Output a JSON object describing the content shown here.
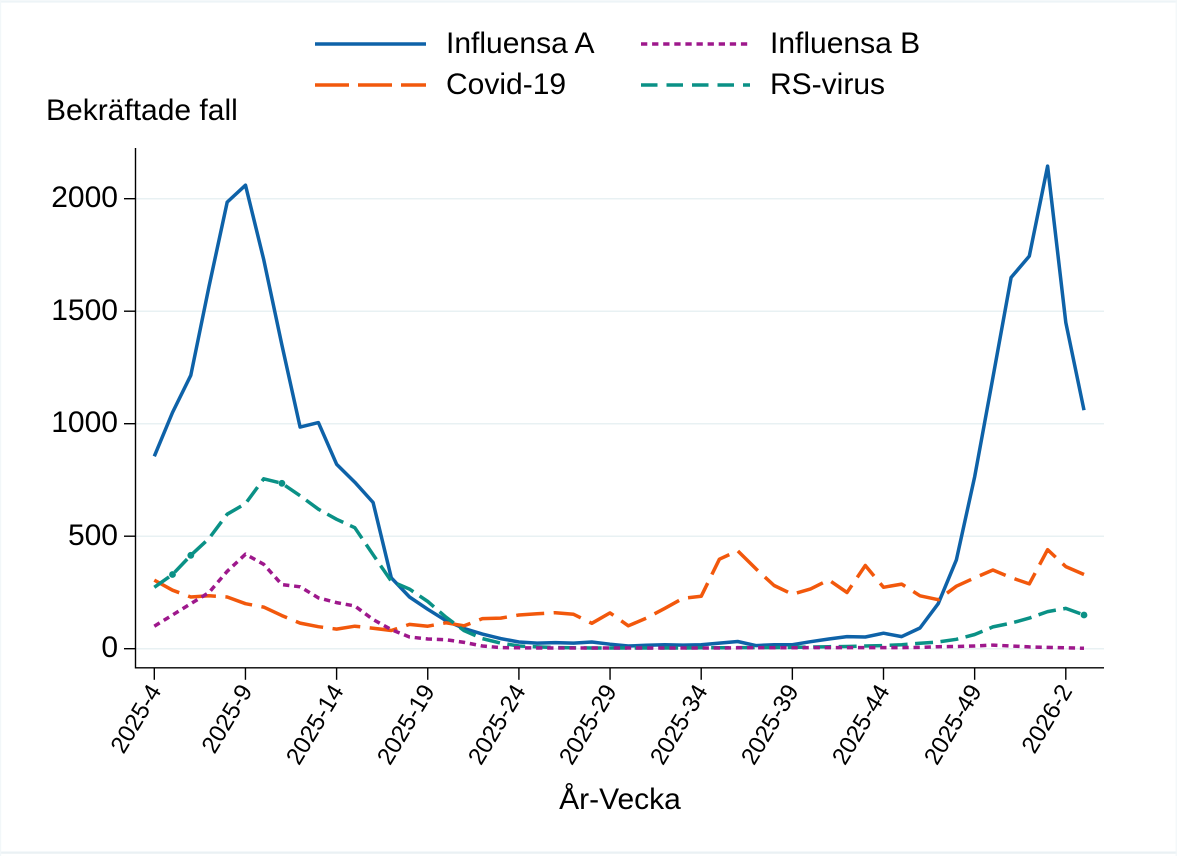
{
  "chart_data": {
    "type": "line",
    "title": "Bekräftade fall",
    "xlabel": "År-Vecka",
    "ylabel": "",
    "grid": true,
    "legend_position": "top-center",
    "yticks": [
      0,
      500,
      1000,
      1500,
      2000
    ],
    "ylim": [
      0,
      2225
    ],
    "xtick_labels": [
      "2025-4",
      "2025-9",
      "2025-14",
      "2025-19",
      "2025-24",
      "2025-29",
      "2025-34",
      "2025-39",
      "2025-44",
      "2025-49",
      "2026-2"
    ],
    "xtick_week_index": [
      0,
      5,
      10,
      15,
      20,
      25,
      30,
      35,
      40,
      45,
      50
    ],
    "weeks": [
      "2025-4",
      "2025-5",
      "2025-6",
      "2025-7",
      "2025-8",
      "2025-9",
      "2025-10",
      "2025-11",
      "2025-12",
      "2025-13",
      "2025-14",
      "2025-15",
      "2025-16",
      "2025-17",
      "2025-18",
      "2025-19",
      "2025-20",
      "2025-21",
      "2025-22",
      "2025-23",
      "2025-24",
      "2025-25",
      "2025-26",
      "2025-27",
      "2025-28",
      "2025-29",
      "2025-30",
      "2025-31",
      "2025-32",
      "2025-33",
      "2025-34",
      "2025-35",
      "2025-36",
      "2025-37",
      "2025-38",
      "2025-39",
      "2025-40",
      "2025-41",
      "2025-42",
      "2025-43",
      "2025-44",
      "2025-45",
      "2025-46",
      "2025-47",
      "2025-48",
      "2025-49",
      "2025-50",
      "2025-51",
      "2025-52",
      "2026-1",
      "2026-2",
      "2026-3"
    ],
    "series": [
      {
        "name": "Influensa A",
        "color": "#0e62a8",
        "pattern": "solid",
        "z": 0,
        "markers": false,
        "values": [
          855,
          1050,
          1215,
          1610,
          1985,
          2060,
          1730,
          1350,
          985,
          1005,
          820,
          740,
          650,
          315,
          230,
          175,
          125,
          90,
          65,
          45,
          30,
          25,
          27,
          25,
          30,
          20,
          12,
          15,
          18,
          16,
          18,
          25,
          32,
          14,
          18,
          18,
          31,
          43,
          54,
          52,
          69,
          54,
          92,
          200,
          395,
          765,
          1205,
          1650,
          1745,
          2145,
          1450,
          1060
        ]
      },
      {
        "name": "Covid-19",
        "color": "#f2580c",
        "pattern": "longdash",
        "z": 1,
        "markers": false,
        "values": [
          305,
          260,
          230,
          235,
          230,
          200,
          185,
          147,
          114,
          98,
          87,
          100,
          91,
          81,
          108,
          100,
          115,
          102,
          134,
          136,
          150,
          155,
          160,
          153,
          113,
          159,
          102,
          136,
          179,
          224,
          233,
          398,
          435,
          355,
          281,
          242,
          266,
          306,
          250,
          370,
          273,
          287,
          235,
          218,
          278,
          315,
          350,
          316,
          288,
          440,
          365,
          330
        ]
      },
      {
        "name": "Influensa B",
        "color": "#9e188c",
        "pattern": "dot",
        "z": 3,
        "markers": false,
        "values": [
          100,
          150,
          200,
          250,
          344,
          420,
          375,
          285,
          275,
          226,
          205,
          190,
          130,
          85,
          52,
          43,
          40,
          28,
          12,
          5,
          4,
          3,
          3,
          3,
          3,
          3,
          3,
          3,
          3,
          3,
          3,
          3,
          4,
          4,
          4,
          4,
          5,
          5,
          5,
          5,
          5,
          5,
          6,
          9,
          10,
          12,
          16,
          12,
          8,
          6,
          4,
          2
        ]
      },
      {
        "name": "RS-virus",
        "color": "#0a9186",
        "pattern": "dash",
        "z": 2,
        "markers": true,
        "marker_weeks": [
          1,
          2,
          7,
          51
        ],
        "values": [
          273,
          330,
          415,
          490,
          598,
          645,
          755,
          735,
          680,
          620,
          575,
          538,
          418,
          300,
          265,
          210,
          140,
          80,
          45,
          25,
          12,
          8,
          5,
          4,
          3,
          3,
          3,
          3,
          3,
          3,
          4,
          4,
          5,
          5,
          5,
          6,
          7,
          9,
          10,
          12,
          14,
          18,
          24,
          30,
          42,
          63,
          97,
          114,
          136,
          165,
          179,
          150
        ]
      }
    ],
    "colors": {
      "axis": "#000000",
      "gridline": "#e8f1f3",
      "background": "#ffffff",
      "text": "#000000"
    }
  },
  "legend": {
    "entries": [
      {
        "label": "Influensa A"
      },
      {
        "label": "Covid-19"
      },
      {
        "label": "Influensa B"
      },
      {
        "label": "RS-virus"
      }
    ]
  }
}
